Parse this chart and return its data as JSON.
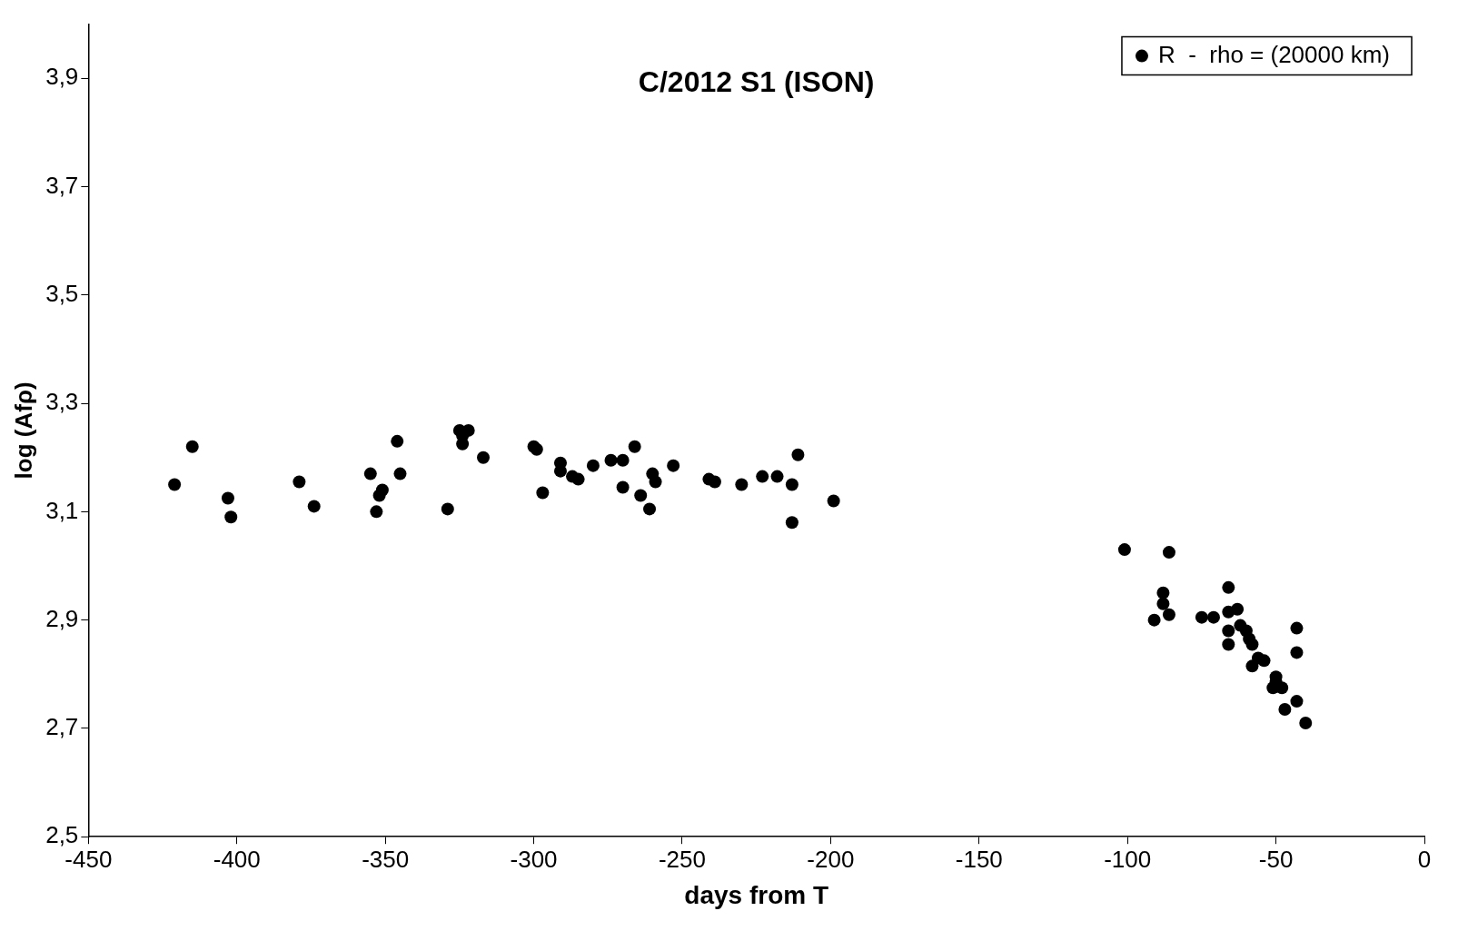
{
  "chart_data": {
    "type": "scatter",
    "title": "C/2012 S1 (ISON)",
    "xlabel": "days from T",
    "ylabel": "log (Afρ)",
    "xlim": [
      -450,
      0
    ],
    "xticks": [
      -450,
      -400,
      -350,
      -300,
      -250,
      -200,
      -150,
      -100,
      -50,
      0
    ],
    "ylim": [
      2.5,
      4.0
    ],
    "yticks": [
      {
        "value": 2.5,
        "label": "2,5"
      },
      {
        "value": 2.7,
        "label": "2,7"
      },
      {
        "value": 2.9,
        "label": "2,9"
      },
      {
        "value": 3.1,
        "label": "3,1"
      },
      {
        "value": 3.3,
        "label": "3,3"
      },
      {
        "value": 3.5,
        "label": "3,5"
      },
      {
        "value": 3.7,
        "label": "3,7"
      },
      {
        "value": 3.9,
        "label": "3,9"
      }
    ],
    "grid": false,
    "legend": "top right",
    "marker": "circle",
    "series": [
      {
        "name": "R  -  rho = (20000 km)",
        "color": "#000000",
        "x": [
          -421,
          -415,
          -403,
          -402,
          -379,
          -374,
          -355,
          -353,
          -352,
          -351,
          -346,
          -345,
          -329,
          -325,
          -324,
          -322,
          -324,
          -317,
          -300,
          -299,
          -297,
          -291,
          -291,
          -287,
          -285,
          -280,
          -274,
          -270,
          -270,
          -266,
          -264,
          -261,
          -260,
          -259,
          -253,
          -241,
          -239,
          -230,
          -223,
          -218,
          -213,
          -213,
          -211,
          -199,
          -101,
          -86,
          -91,
          -88,
          -88,
          -86,
          -75,
          -71,
          -66,
          -66,
          -66,
          -66,
          -63,
          -62,
          -60,
          -59,
          -58,
          -56,
          -54,
          -58,
          -50,
          -50,
          -51,
          -48,
          -47,
          -43,
          -43,
          -43,
          -40
        ],
        "values": [
          3.15,
          3.22,
          3.125,
          3.09,
          3.155,
          3.11,
          3.17,
          3.1,
          3.13,
          3.14,
          3.23,
          3.17,
          3.105,
          3.25,
          3.225,
          3.25,
          3.24,
          3.2,
          3.22,
          3.215,
          3.135,
          3.19,
          3.175,
          3.165,
          3.16,
          3.185,
          3.195,
          3.195,
          3.145,
          3.22,
          3.13,
          3.105,
          3.17,
          3.155,
          3.185,
          3.16,
          3.155,
          3.15,
          3.165,
          3.165,
          3.15,
          3.08,
          3.205,
          3.12,
          3.03,
          3.025,
          2.9,
          2.95,
          2.93,
          2.91,
          2.905,
          2.905,
          2.96,
          2.915,
          2.88,
          2.855,
          2.92,
          2.89,
          2.88,
          2.865,
          2.855,
          2.83,
          2.825,
          2.815,
          2.795,
          2.785,
          2.775,
          2.775,
          2.735,
          2.885,
          2.84,
          2.75,
          2.71
        ]
      }
    ]
  }
}
